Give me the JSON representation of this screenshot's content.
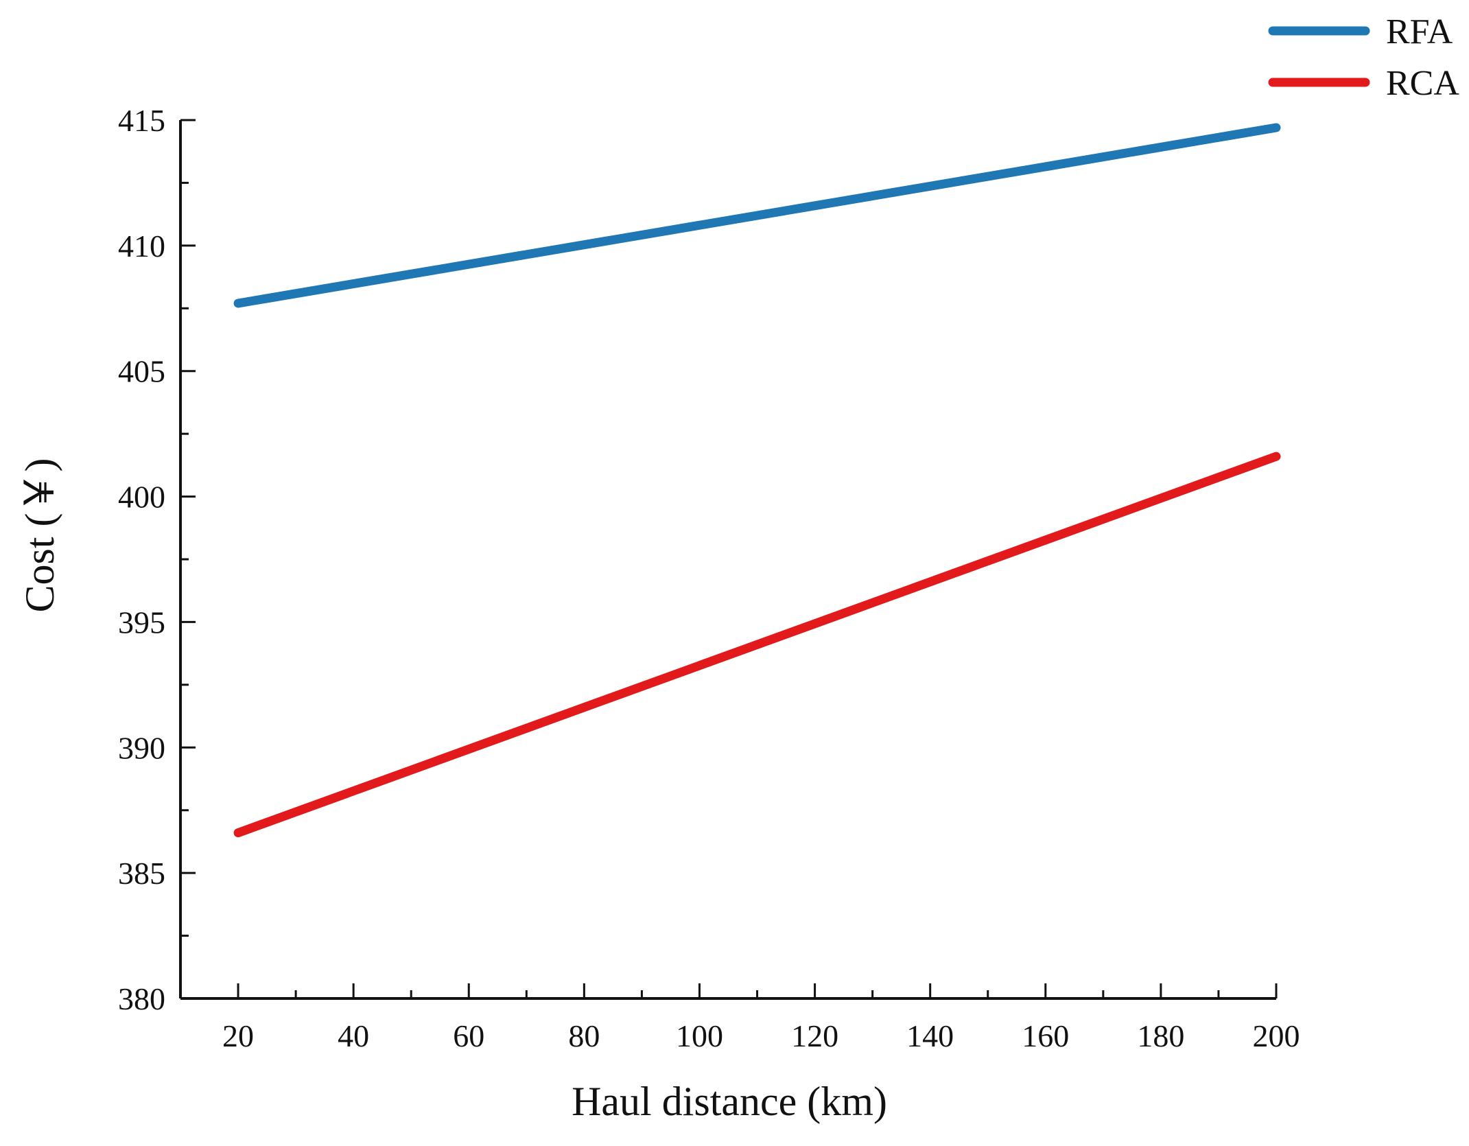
{
  "chart_data": {
    "type": "line",
    "title": "",
    "xlabel": "Haul distance (km)",
    "ylabel": "Cost (￥)",
    "xlim": [
      10,
      200
    ],
    "ylim": [
      380,
      415
    ],
    "x_ticks": [
      20,
      40,
      60,
      80,
      100,
      120,
      140,
      160,
      180,
      200
    ],
    "x_tick_labels": [
      "20",
      "40",
      "60",
      "80",
      "100",
      "120",
      "140",
      "160",
      "180",
      "200"
    ],
    "y_ticks": [
      380,
      385,
      390,
      395,
      400,
      405,
      410,
      415
    ],
    "y_tick_labels": [
      "380",
      "385",
      "390",
      "395",
      "400",
      "405",
      "410",
      "415"
    ],
    "grid": false,
    "legend_position": "top-right",
    "series": [
      {
        "name": "RFA",
        "color": "#1f77b4",
        "x": [
          20,
          200
        ],
        "y": [
          407.7,
          414.7
        ]
      },
      {
        "name": "RCA",
        "color": "#e31a1c",
        "x": [
          20,
          200
        ],
        "y": [
          386.6,
          401.6
        ]
      }
    ]
  }
}
